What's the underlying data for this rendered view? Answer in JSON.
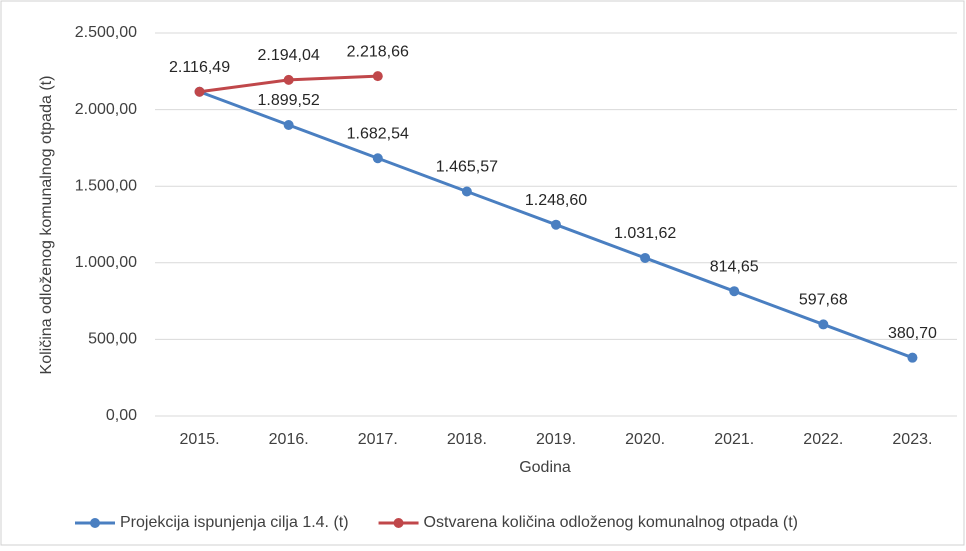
{
  "chart_data": {
    "type": "line",
    "x_label": "Godina",
    "y_label": "Količina odloženog komunalnog otpada (t)",
    "categories": [
      "2015.",
      "2016.",
      "2017.",
      "2018.",
      "2019.",
      "2020.",
      "2021.",
      "2022.",
      "2023."
    ],
    "series": [
      {
        "name": "Projekcija ispunjenja cilja 1.4. (t)",
        "color": "#4a7fc1",
        "values": [
          2116.49,
          1899.52,
          1682.54,
          1465.57,
          1248.6,
          1031.62,
          814.65,
          597.68,
          380.7
        ],
        "value_labels": [
          null,
          "1.899,52",
          "1.682,54",
          "1.465,57",
          "1.248,60",
          "1.031,62",
          "814,65",
          "597,68",
          "380,70"
        ]
      },
      {
        "name": "Ostvarena količina odloženog komunalnog otpada (t)",
        "color": "#c0474a",
        "values": [
          2116.49,
          2194.04,
          2218.66,
          null,
          null,
          null,
          null,
          null,
          null
        ],
        "value_labels": [
          "2.116,49",
          "2.194,04",
          "2.218,66",
          null,
          null,
          null,
          null,
          null,
          null
        ]
      }
    ],
    "ylim": [
      0,
      2500
    ],
    "yticks": [
      {
        "value": 0,
        "label": "0,00"
      },
      {
        "value": 500,
        "label": "500,00"
      },
      {
        "value": 1000,
        "label": "1.000,00"
      },
      {
        "value": 1500,
        "label": "1.500,00"
      },
      {
        "value": 2000,
        "label": "2.000,00"
      },
      {
        "value": 2500,
        "label": "2.500,00"
      }
    ],
    "grid": true,
    "legend": "bottom"
  }
}
